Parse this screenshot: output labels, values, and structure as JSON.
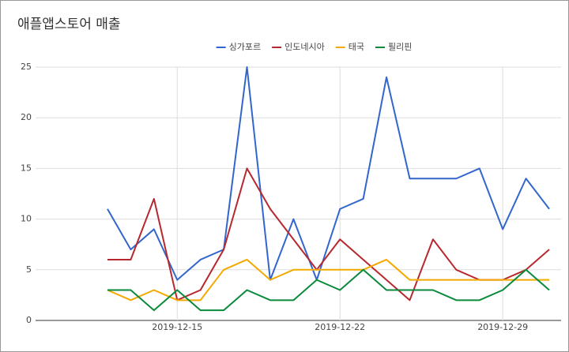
{
  "chart_data": {
    "type": "line",
    "title": "애플앱스토어 매출",
    "categories": [
      null,
      null,
      null,
      "2019-12-15",
      null,
      null,
      null,
      null,
      null,
      null,
      "2019-12-22",
      null,
      null,
      null,
      null,
      null,
      null,
      "2019-12-29",
      null,
      null
    ],
    "series": [
      {
        "name": "싱가포르",
        "color": "#3366cc",
        "values": [
          11,
          7,
          9,
          4,
          6,
          7,
          25,
          4,
          10,
          4,
          11,
          12,
          24,
          14,
          14,
          14,
          15,
          9,
          14,
          11
        ]
      },
      {
        "name": "인도네시아",
        "color": "#b7282e",
        "values": [
          6,
          6,
          12,
          2,
          3,
          7,
          15,
          11,
          8,
          5,
          8,
          6,
          4,
          2,
          8,
          5,
          4,
          4,
          5,
          7
        ]
      },
      {
        "name": "태국",
        "color": "#f4a900",
        "values": [
          3,
          2,
          3,
          2,
          2,
          5,
          6,
          4,
          5,
          5,
          5,
          5,
          6,
          4,
          4,
          4,
          4,
          4,
          4,
          4
        ]
      },
      {
        "name": "필리핀",
        "color": "#0a8a3a",
        "values": [
          3,
          3,
          1,
          3,
          1,
          1,
          3,
          2,
          2,
          4,
          3,
          5,
          3,
          3,
          3,
          2,
          2,
          3,
          5,
          3
        ]
      }
    ],
    "ylim": [
      0,
      25
    ],
    "yticks": [
      0,
      5,
      10,
      15,
      20,
      25
    ],
    "grid": true,
    "legend": "top"
  }
}
